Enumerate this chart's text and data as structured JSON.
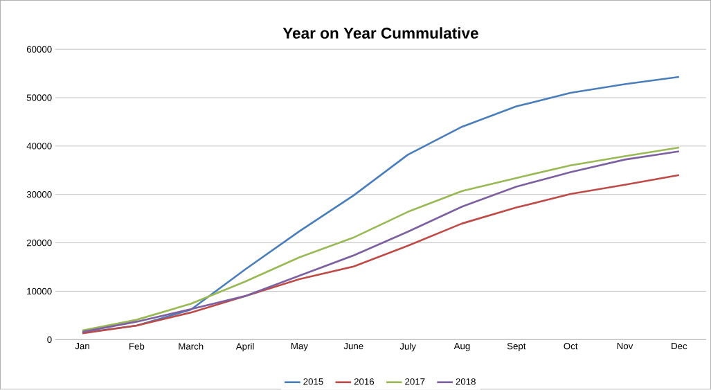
{
  "chart_data": {
    "type": "line",
    "title": "Year on Year Cummulative",
    "categories": [
      "Jan",
      "Feb",
      "March",
      "April",
      "May",
      "June",
      "July",
      "Aug",
      "Sept",
      "Oct",
      "Nov",
      "Dec"
    ],
    "series": [
      {
        "name": "2015",
        "color": "#4a7ebb",
        "values": [
          1400,
          2900,
          6200,
          14500,
          22400,
          29800,
          38200,
          44000,
          48200,
          51000,
          52800,
          54300
        ]
      },
      {
        "name": "2016",
        "color": "#be4b48",
        "values": [
          1300,
          2900,
          5600,
          9000,
          12500,
          15100,
          19400,
          24000,
          27300,
          30100,
          32000,
          34000
        ]
      },
      {
        "name": "2017",
        "color": "#98b954",
        "values": [
          1900,
          4100,
          7400,
          12000,
          17000,
          21100,
          26400,
          30700,
          33400,
          36000,
          37900,
          39700
        ]
      },
      {
        "name": "2018",
        "color": "#7d60a0",
        "values": [
          1600,
          3700,
          6300,
          9000,
          13200,
          17400,
          22300,
          27500,
          31600,
          34600,
          37200,
          38900
        ]
      }
    ],
    "ylim": [
      0,
      60000
    ],
    "yticks": [
      0,
      10000,
      20000,
      30000,
      40000,
      50000,
      60000
    ],
    "grid": "y",
    "legend": "bottom",
    "marker": "none",
    "line_style": "solid"
  }
}
